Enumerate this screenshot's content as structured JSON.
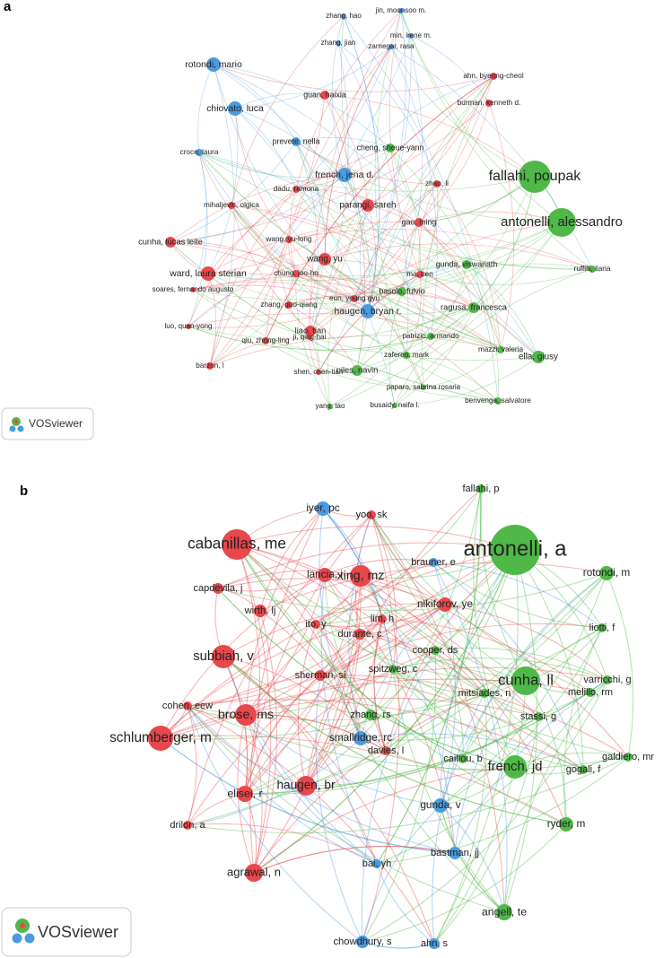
{
  "panels": [
    {
      "label": "a",
      "logo": "VOSviewer",
      "nodes": [
        {
          "label": "jin, moonsoo m.",
          "color": "#4a9be0"
        },
        {
          "label": "zhang, hao",
          "color": "#4a9be0"
        },
        {
          "label": "min, irene m.",
          "color": "#4a9be0"
        },
        {
          "label": "zhang, jian",
          "color": "#4a9be0"
        },
        {
          "label": "zarnegar, rasa",
          "color": "#4a9be0"
        },
        {
          "label": "rotondi, mario",
          "color": "#4a9be0"
        },
        {
          "label": "ahn, byeong-cheol",
          "color": "#e8474c"
        },
        {
          "label": "guan, haixia",
          "color": "#e8474c"
        },
        {
          "label": "burman, kenneth d.",
          "color": "#e8474c"
        },
        {
          "label": "chiovato, luca",
          "color": "#4a9be0"
        },
        {
          "label": "prevete, nella",
          "color": "#4a9be0"
        },
        {
          "label": "cheng, sheue-yann",
          "color": "#4fb848"
        },
        {
          "label": "croce, laura",
          "color": "#4a9be0"
        },
        {
          "label": "fallahi, poupak",
          "color": "#4fb848"
        },
        {
          "label": "french, jena d.",
          "color": "#4a9be0"
        },
        {
          "label": "dadu, ramona",
          "color": "#e8474c"
        },
        {
          "label": "zhao, li",
          "color": "#e8474c"
        },
        {
          "label": "mihaljevic, olgica",
          "color": "#e8474c"
        },
        {
          "label": "parangi, sareh",
          "color": "#e8474c"
        },
        {
          "label": "antonelli, alessandro",
          "color": "#4fb848"
        },
        {
          "label": "gao, ming",
          "color": "#e8474c"
        },
        {
          "label": "cunha, lucas leite",
          "color": "#e8474c"
        },
        {
          "label": "wang, yu-long",
          "color": "#e8474c"
        },
        {
          "label": "wang, yu",
          "color": "#e8474c"
        },
        {
          "label": "chung, joo-ho",
          "color": "#e8474c"
        },
        {
          "label": "ward, laura sterian",
          "color": "#e8474c"
        },
        {
          "label": "ma, ben",
          "color": "#e8474c"
        },
        {
          "label": "gunda, viswanath",
          "color": "#4fb848"
        },
        {
          "label": "ruffilli, ilaria",
          "color": "#4fb848"
        },
        {
          "label": "soares, fernando augusto",
          "color": "#e8474c"
        },
        {
          "label": "zhang, guo-qiang",
          "color": "#e8474c"
        },
        {
          "label": "basolo, fulvio",
          "color": "#4fb848"
        },
        {
          "label": "eun, young gyu",
          "color": "#e8474c"
        },
        {
          "label": "haugen, bryan r.",
          "color": "#4a9be0"
        },
        {
          "label": "ragusa, francesca",
          "color": "#4fb848"
        },
        {
          "label": "luo, quan-yong",
          "color": "#e8474c"
        },
        {
          "label": "ji, qing-hai",
          "color": "#e8474c"
        },
        {
          "label": "liao, tian",
          "color": "#e8474c"
        },
        {
          "label": "qiu, zhong-ling",
          "color": "#e8474c"
        },
        {
          "label": "patrizio, armando",
          "color": "#4fb848"
        },
        {
          "label": "mazzi, valeria",
          "color": "#4fb848"
        },
        {
          "label": "zafereo, mark",
          "color": "#4fb848"
        },
        {
          "label": "ella, giusy",
          "color": "#4fb848"
        },
        {
          "label": "barzon, l",
          "color": "#e8474c"
        },
        {
          "label": "shen, chen-tian",
          "color": "#e8474c"
        },
        {
          "label": "niles, navin",
          "color": "#4fb848"
        },
        {
          "label": "paparo, sabrina rosaria",
          "color": "#4fb848"
        },
        {
          "label": "yang, tao",
          "color": "#4fb848"
        },
        {
          "label": "busaidy, naifa l.",
          "color": "#4fb848"
        },
        {
          "label": "benvenga, salvatore",
          "color": "#4fb848"
        }
      ]
    },
    {
      "label": "b",
      "logo": "VOSviewer",
      "nodes": [
        {
          "label": "fallahi, p",
          "color": "#4fb848"
        },
        {
          "label": "iyer, pc",
          "color": "#4a9be0"
        },
        {
          "label": "yoo, sk",
          "color": "#e8474c"
        },
        {
          "label": "antonelli, a",
          "color": "#4fb848"
        },
        {
          "label": "cabanillas, me",
          "color": "#e8474c"
        },
        {
          "label": "brauner, e",
          "color": "#4a9be0"
        },
        {
          "label": "lancia, i",
          "color": "#e8474c"
        },
        {
          "label": "xing, mz",
          "color": "#e8474c"
        },
        {
          "label": "rotondi, m",
          "color": "#4fb848"
        },
        {
          "label": "capdevila, j",
          "color": "#e8474c"
        },
        {
          "label": "nikiforov, ye",
          "color": "#e8474c"
        },
        {
          "label": "wirth, lj",
          "color": "#e8474c"
        },
        {
          "label": "lim, h",
          "color": "#e8474c"
        },
        {
          "label": "liotti, f",
          "color": "#4fb848"
        },
        {
          "label": "ito, y",
          "color": "#e8474c"
        },
        {
          "label": "durante, c",
          "color": "#e8474c"
        },
        {
          "label": "subbiah, v",
          "color": "#e8474c"
        },
        {
          "label": "cooper, ds",
          "color": "#4fb848"
        },
        {
          "label": "spitzweg, c",
          "color": "#4fb848"
        },
        {
          "label": "sherman, si",
          "color": "#e8474c"
        },
        {
          "label": "cunha, ll",
          "color": "#4fb848"
        },
        {
          "label": "varricchi, g",
          "color": "#4fb848"
        },
        {
          "label": "cohen, eew",
          "color": "#e8474c"
        },
        {
          "label": "zhang, rs",
          "color": "#4fb848"
        },
        {
          "label": "brose, ms",
          "color": "#e8474c"
        },
        {
          "label": "mitsiades, n",
          "color": "#4fb848"
        },
        {
          "label": "melillo, rm",
          "color": "#4fb848"
        },
        {
          "label": "stassi, g",
          "color": "#4fb848"
        },
        {
          "label": "smallridge, rc",
          "color": "#4a9be0"
        },
        {
          "label": "schlumberger, m",
          "color": "#e8474c"
        },
        {
          "label": "davies, l",
          "color": "#e8474c"
        },
        {
          "label": "caillou, b",
          "color": "#4fb848"
        },
        {
          "label": "galdiero, mr",
          "color": "#4fb848"
        },
        {
          "label": "gogali, f",
          "color": "#4fb848"
        },
        {
          "label": "french, jd",
          "color": "#4fb848"
        },
        {
          "label": "haugen, br",
          "color": "#e8474c"
        },
        {
          "label": "elisei, r",
          "color": "#e8474c"
        },
        {
          "label": "gunda, v",
          "color": "#4a9be0"
        },
        {
          "label": "drilon, a",
          "color": "#e8474c"
        },
        {
          "label": "ryder, m",
          "color": "#4fb848"
        },
        {
          "label": "bastman, jj",
          "color": "#4a9be0"
        },
        {
          "label": "agrawal, n",
          "color": "#e8474c"
        },
        {
          "label": "bai, yh",
          "color": "#4a9be0"
        },
        {
          "label": "angell, te",
          "color": "#4fb848"
        },
        {
          "label": "chowdhury, s",
          "color": "#4a9be0"
        },
        {
          "label": "ahn, s",
          "color": "#4a9be0"
        }
      ]
    }
  ]
}
